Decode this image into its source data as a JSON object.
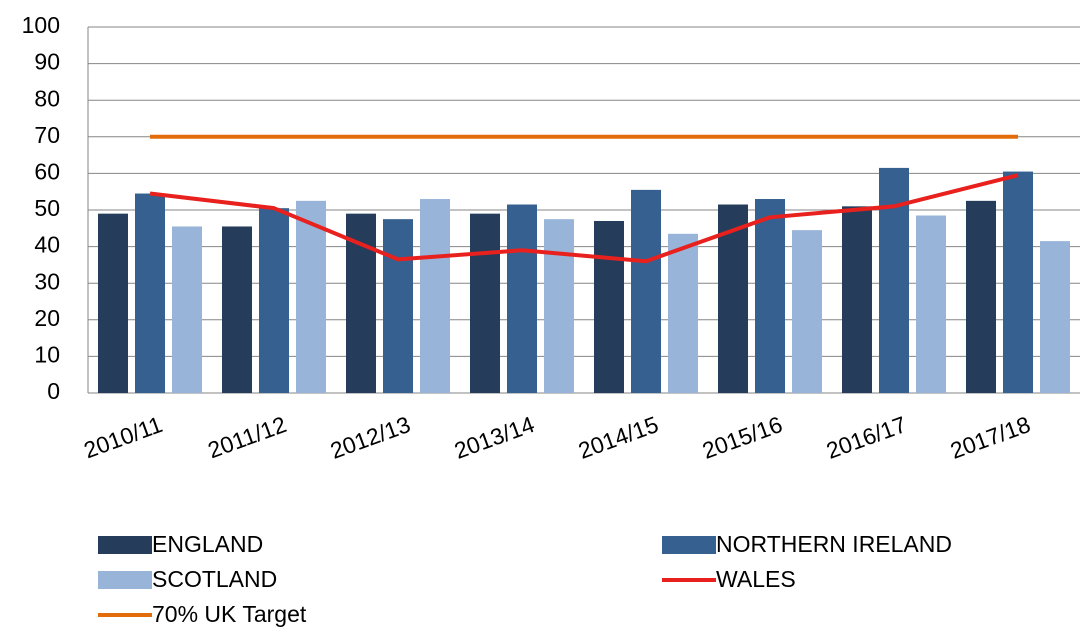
{
  "chart_data": {
    "type": "bar",
    "categories": [
      "2010/11",
      "2011/12",
      "2012/13",
      "2013/14",
      "2014/15",
      "2015/16",
      "2016/17",
      "2017/18"
    ],
    "series": [
      {
        "name": "ENGLAND",
        "type": "bar",
        "color": "#253c5a",
        "values": [
          49,
          45.5,
          49,
          49,
          47,
          51.5,
          51,
          52.5
        ]
      },
      {
        "name": "NORTHERN IRELAND",
        "type": "bar",
        "color": "#36608f",
        "values": [
          54.5,
          50.5,
          47.5,
          51.5,
          55.5,
          53,
          61.5,
          60.5
        ]
      },
      {
        "name": "SCOTLAND",
        "type": "bar",
        "color": "#98b5d9",
        "values": [
          45.5,
          52.5,
          53,
          47.5,
          43.5,
          44.5,
          48.5,
          41.5
        ]
      },
      {
        "name": "WALES",
        "type": "line",
        "color": "#e8211e",
        "values": [
          54.5,
          50.5,
          36.5,
          39,
          36,
          48,
          51,
          59.5
        ]
      },
      {
        "name": "70% UK Target",
        "type": "line",
        "color": "#e36c0a",
        "values": [
          70,
          70,
          70,
          70,
          70,
          70,
          70,
          70
        ]
      }
    ],
    "ylim": [
      0,
      100
    ],
    "yticks": [
      0,
      10,
      20,
      30,
      40,
      50,
      60,
      70,
      80,
      90,
      100
    ],
    "grid": true
  }
}
